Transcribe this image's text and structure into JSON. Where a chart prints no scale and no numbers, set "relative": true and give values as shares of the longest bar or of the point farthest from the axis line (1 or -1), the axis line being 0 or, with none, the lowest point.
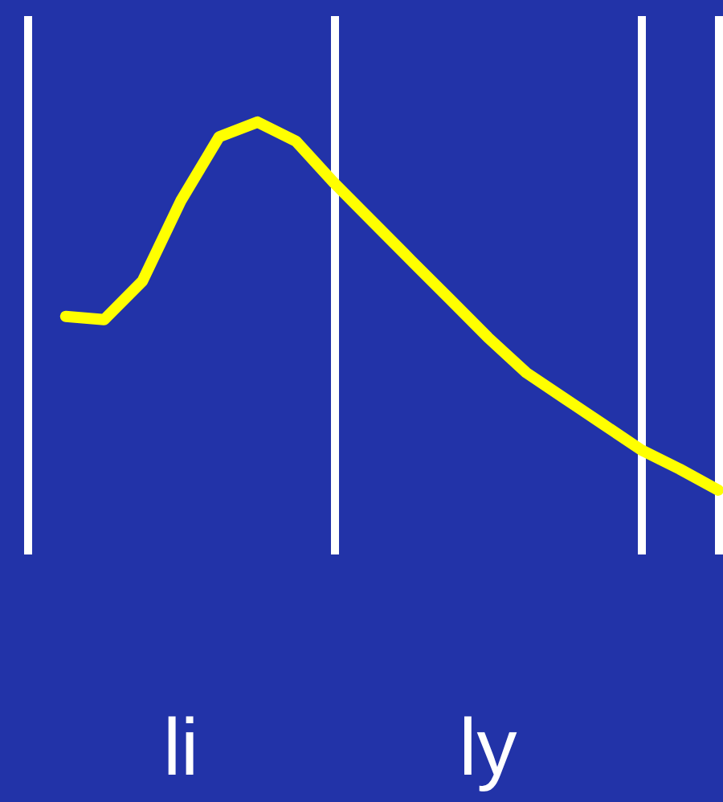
{
  "chart_data": {
    "type": "line",
    "relative": true,
    "tick_labels": "x",
    "marker": "none",
    "grid": "x",
    "categories": [
      null,
      null,
      null,
      null,
      "li",
      null,
      null,
      null,
      null,
      null,
      null,
      null,
      "ly",
      null,
      null,
      null,
      null,
      null,
      null
    ],
    "series": [
      {
        "color": "#ffff00",
        "values": [
          null,
          0.472,
          0.463,
          0.568,
          0.786,
          0.96,
          1,
          0.948,
          0.834,
          0.729,
          0.624,
          0.52,
          0.415,
          0.319,
          0.249,
          0.179,
          0.109,
          0.057,
          0
        ]
      }
    ]
  }
}
